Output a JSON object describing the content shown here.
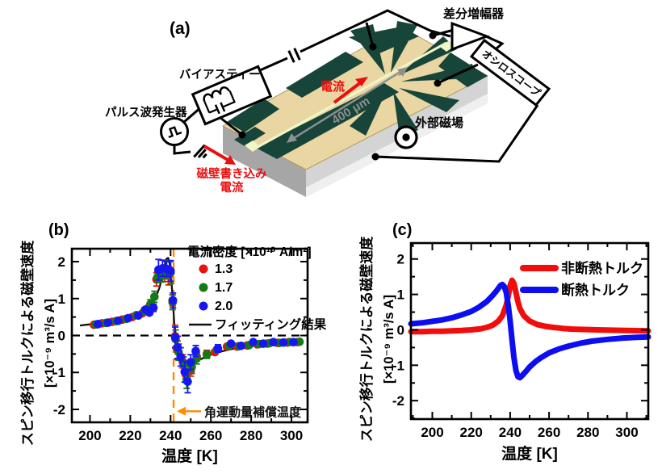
{
  "figure": {
    "panel_a_label": "(a)",
    "panel_b_label": "(b)",
    "panel_c_label": "(c)"
  },
  "diagram": {
    "labels": {
      "diff_amp": "差分増幅器",
      "oscilloscope": "オシロスコープ",
      "bias_tee": "バイアスティー",
      "pulse_generator": "パルス波発生器",
      "current": "電流",
      "scale_bar": "400 μm",
      "external_field": "外部磁場",
      "dw_write_current_line1": "磁壁書き込み",
      "dw_write_current_line2": "電流"
    },
    "colors": {
      "label_red": "#e81010",
      "chip_gold": "#e9d6a2",
      "chip_pattern": "#17453a",
      "chip_side_gray": "#a6a6a6",
      "chip_front_gray": "#d4d4d4",
      "wire_line_yellow": "#f0f6c6",
      "dimension_gray": "#8f8f8f"
    }
  },
  "chart_data": [
    {
      "type": "scatter",
      "panel": "b",
      "xlabel": "温度 [K]",
      "ylabel_line1": "スピン移行トルクによる磁壁速度",
      "ylabel_line2": "[×10⁻⁹ m³/s A]",
      "xlim": [
        191,
        308
      ],
      "ylim": [
        -2.35,
        2.35
      ],
      "xticks": [
        200,
        220,
        240,
        260,
        280,
        300
      ],
      "yticks": [
        -2,
        -1,
        0,
        1,
        2
      ],
      "grid": false,
      "zero_dashed": true,
      "legend": {
        "title": "電流密度 [×10¹⁰ A/m²]",
        "items": [
          {
            "swatch": "dot",
            "color": "#e8140c",
            "label": "1.3"
          },
          {
            "swatch": "dot",
            "color": "#157a15",
            "label": "1.7"
          },
          {
            "swatch": "dot",
            "color": "#1616f0",
            "label": "2.0"
          },
          {
            "swatch": "line",
            "color": "#111111",
            "label": "フィッティング結果"
          }
        ]
      },
      "annotation": {
        "x": 241.5,
        "label_y": -2.05,
        "label": "角運動量補償温度",
        "color": "#ff8c00"
      },
      "fit": {
        "name": "フィッティング結果",
        "color": "#111111",
        "points": [
          [
            195,
            0.27
          ],
          [
            198,
            0.29
          ],
          [
            202,
            0.31
          ],
          [
            206,
            0.34
          ],
          [
            210,
            0.375
          ],
          [
            214,
            0.415
          ],
          [
            218,
            0.465
          ],
          [
            222,
            0.53
          ],
          [
            226,
            0.62
          ],
          [
            229,
            0.75
          ],
          [
            231,
            0.88
          ],
          [
            233,
            1.08
          ],
          [
            234.5,
            1.3
          ],
          [
            236,
            1.62
          ],
          [
            237,
            1.9
          ],
          [
            238,
            2.08
          ],
          [
            238.8,
            2.1
          ],
          [
            239.5,
            1.95
          ],
          [
            240.3,
            1.55
          ],
          [
            241,
            1.05
          ],
          [
            241.7,
            0.45
          ],
          [
            242.3,
            -0.05
          ],
          [
            243,
            -0.4
          ],
          [
            244,
            -0.62
          ],
          [
            245.5,
            -0.78
          ],
          [
            247,
            -0.84
          ],
          [
            248.5,
            -0.84
          ],
          [
            250,
            -0.8
          ],
          [
            252,
            -0.73
          ],
          [
            255,
            -0.64
          ],
          [
            258,
            -0.56
          ],
          [
            262,
            -0.48
          ],
          [
            266,
            -0.42
          ],
          [
            270,
            -0.37
          ],
          [
            274,
            -0.33
          ],
          [
            278,
            -0.295
          ],
          [
            282,
            -0.265
          ],
          [
            286,
            -0.24
          ],
          [
            290,
            -0.22
          ],
          [
            294,
            -0.205
          ],
          [
            298,
            -0.19
          ],
          [
            302,
            -0.18
          ],
          [
            306,
            -0.17
          ]
        ]
      },
      "series": [
        {
          "name": "1.3",
          "color": "#e8140c",
          "points": [
            [
              202,
              0.29,
              0.06
            ],
            [
              206,
              0.33,
              0.06
            ],
            [
              211,
              0.37,
              0.06
            ],
            [
              216,
              0.43,
              0.06
            ],
            [
              221,
              0.5,
              0.07
            ],
            [
              226,
              0.6,
              0.08
            ],
            [
              229,
              0.72,
              0.1
            ],
            [
              233,
              1.52,
              0.18
            ],
            [
              235,
              1.6,
              0.15
            ],
            [
              237,
              1.68,
              0.22
            ],
            [
              239,
              1.62,
              0.25
            ],
            [
              241,
              0.95,
              0.15
            ],
            [
              242.3,
              -0.02,
              0.3
            ],
            [
              243.5,
              -0.4,
              0.25
            ],
            [
              246,
              -0.7,
              0.18
            ],
            [
              247.5,
              -1.05,
              0.22
            ],
            [
              250,
              -0.95,
              0.15
            ],
            [
              253,
              -0.57,
              0.12
            ],
            [
              258,
              -0.5,
              0.1
            ],
            [
              262,
              -0.45,
              0.08
            ],
            [
              268,
              -0.3,
              0.07
            ],
            [
              273,
              -0.3,
              0.06
            ],
            [
              278,
              -0.27,
              0.06
            ],
            [
              283,
              -0.24,
              0.05
            ],
            [
              288,
              -0.22,
              0.05
            ],
            [
              293,
              -0.2,
              0.05
            ],
            [
              298,
              -0.19,
              0.05
            ],
            [
              303,
              -0.18,
              0.05
            ]
          ]
        },
        {
          "name": "1.7",
          "color": "#157a15",
          "points": [
            [
              203,
              0.3,
              0.05
            ],
            [
              208,
              0.34,
              0.05
            ],
            [
              213,
              0.39,
              0.05
            ],
            [
              218,
              0.45,
              0.06
            ],
            [
              223,
              0.55,
              0.07
            ],
            [
              227,
              0.66,
              0.09
            ],
            [
              230,
              0.85,
              0.12
            ],
            [
              232,
              1.05,
              0.15
            ],
            [
              233.5,
              1.58,
              0.15
            ],
            [
              236,
              1.65,
              0.2
            ],
            [
              238,
              1.78,
              0.25
            ],
            [
              240,
              1.7,
              0.3
            ],
            [
              241,
              0.9,
              0.2
            ],
            [
              242.5,
              -0.1,
              0.25
            ],
            [
              244,
              -0.45,
              0.22
            ],
            [
              246.5,
              -0.78,
              0.2
            ],
            [
              248,
              -1.18,
              0.25
            ],
            [
              250.5,
              -0.85,
              0.18
            ],
            [
              253,
              -0.62,
              0.15
            ],
            [
              258,
              -0.52,
              0.1
            ],
            [
              263,
              -0.38,
              0.08
            ],
            [
              269,
              -0.28,
              0.06
            ],
            [
              274,
              -0.29,
              0.06
            ],
            [
              279,
              -0.26,
              0.05
            ],
            [
              284,
              -0.23,
              0.05
            ],
            [
              289,
              -0.21,
              0.05
            ],
            [
              294,
              -0.2,
              0.05
            ],
            [
              299,
              -0.18,
              0.05
            ],
            [
              304,
              -0.17,
              0.05
            ]
          ]
        },
        {
          "name": "2.0",
          "color": "#1616f0",
          "points": [
            [
              204,
              0.31,
              0.05
            ],
            [
              209,
              0.35,
              0.05
            ],
            [
              214,
              0.4,
              0.05
            ],
            [
              219,
              0.47,
              0.06
            ],
            [
              224,
              0.54,
              0.07
            ],
            [
              227.5,
              0.7,
              0.08
            ],
            [
              229.5,
              0.62,
              0.08
            ],
            [
              231.5,
              0.75,
              0.1
            ],
            [
              234,
              1.78,
              0.28
            ],
            [
              236,
              1.82,
              0.22
            ],
            [
              238,
              1.8,
              0.2
            ],
            [
              240,
              1.75,
              0.28
            ],
            [
              241.2,
              0.95,
              0.2
            ],
            [
              242.3,
              -0.05,
              0.28
            ],
            [
              243.5,
              -0.32,
              0.3
            ],
            [
              245,
              -0.58,
              0.25
            ],
            [
              247,
              -0.98,
              0.28
            ],
            [
              248.5,
              -1.25,
              0.3
            ],
            [
              250,
              -0.72,
              0.2
            ],
            [
              252.5,
              -0.42,
              0.15
            ],
            [
              263.5,
              -0.35,
              0.1
            ],
            [
              270,
              -0.22,
              0.07
            ],
            [
              275,
              -0.28,
              0.06
            ],
            [
              281,
              -0.18,
              0.05
            ],
            [
              286,
              -0.22,
              0.05
            ],
            [
              291,
              -0.18,
              0.05
            ],
            [
              296,
              -0.19,
              0.05
            ],
            [
              301,
              -0.18,
              0.05
            ]
          ]
        }
      ]
    },
    {
      "type": "line",
      "panel": "c",
      "xlabel": "温度 [K]",
      "ylabel_line1": "スピン移行トルクによる磁壁速度",
      "ylabel_line2": "[×10⁻⁹ m³/s A]",
      "xlim": [
        189,
        311
      ],
      "ylim": [
        -2.52,
        2.45
      ],
      "xticks": [
        200,
        220,
        240,
        260,
        280,
        300
      ],
      "yticks": [
        -2,
        -1,
        0,
        1,
        2
      ],
      "grid": false,
      "zero_dashed": false,
      "legend": {
        "title": "",
        "items": [
          {
            "swatch": "thick",
            "color": "#f20d0d",
            "label": "非断熱トルク"
          },
          {
            "swatch": "thick",
            "color": "#0d0df2",
            "label": "断熱トルク"
          }
        ]
      },
      "series": [
        {
          "name": "非断熱トルク",
          "color": "#f20d0d",
          "points": [
            [
              189,
              -0.05
            ],
            [
              195,
              -0.05
            ],
            [
              200,
              -0.04
            ],
            [
              205,
              -0.04
            ],
            [
              210,
              -0.03
            ],
            [
              215,
              -0.02
            ],
            [
              220,
              0.0
            ],
            [
              225,
              0.03
            ],
            [
              228,
              0.07
            ],
            [
              231,
              0.13
            ],
            [
              234,
              0.25
            ],
            [
              236,
              0.4
            ],
            [
              238,
              0.7
            ],
            [
              239,
              0.95
            ],
            [
              240,
              1.25
            ],
            [
              241,
              1.4
            ],
            [
              242,
              1.3
            ],
            [
              243,
              1.05
            ],
            [
              244,
              0.8
            ],
            [
              245,
              0.6
            ],
            [
              247,
              0.4
            ],
            [
              250,
              0.25
            ],
            [
              254,
              0.15
            ],
            [
              258,
              0.1
            ],
            [
              262,
              0.07
            ],
            [
              267,
              0.04
            ],
            [
              272,
              0.02
            ],
            [
              278,
              0.01
            ],
            [
              285,
              0.0
            ],
            [
              292,
              -0.01
            ],
            [
              300,
              -0.02
            ],
            [
              311,
              -0.03
            ]
          ]
        },
        {
          "name": "断熱トルク",
          "color": "#0d0df2",
          "points": [
            [
              189,
              0.17
            ],
            [
              195,
              0.2
            ],
            [
              200,
              0.24
            ],
            [
              205,
              0.28
            ],
            [
              210,
              0.34
            ],
            [
              215,
              0.42
            ],
            [
              220,
              0.52
            ],
            [
              224,
              0.64
            ],
            [
              228,
              0.8
            ],
            [
              231,
              0.97
            ],
            [
              233,
              1.1
            ],
            [
              235,
              1.25
            ],
            [
              236,
              1.28
            ],
            [
              237,
              1.22
            ],
            [
              238,
              1.05
            ],
            [
              239,
              0.7
            ],
            [
              240,
              0.25
            ],
            [
              241,
              -0.3
            ],
            [
              242,
              -0.8
            ],
            [
              243,
              -1.15
            ],
            [
              244,
              -1.32
            ],
            [
              245,
              -1.35
            ],
            [
              246,
              -1.3
            ],
            [
              248,
              -1.18
            ],
            [
              250,
              -1.05
            ],
            [
              253,
              -0.9
            ],
            [
              256,
              -0.78
            ],
            [
              260,
              -0.65
            ],
            [
              265,
              -0.54
            ],
            [
              270,
              -0.46
            ],
            [
              276,
              -0.38
            ],
            [
              282,
              -0.32
            ],
            [
              290,
              -0.27
            ],
            [
              298,
              -0.23
            ],
            [
              305,
              -0.21
            ],
            [
              311,
              -0.2
            ]
          ]
        }
      ]
    }
  ]
}
